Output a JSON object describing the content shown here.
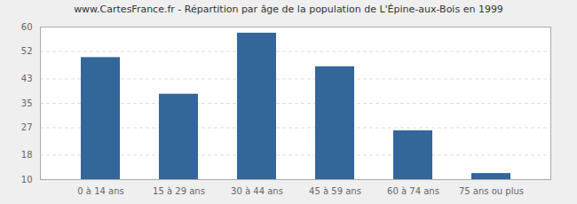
{
  "chart_data": {
    "type": "bar",
    "title": "www.CartesFrance.fr - Répartition par âge de la population de L'Épine-aux-Bois en 1999",
    "categories": [
      "0 à 14 ans",
      "15 à 29 ans",
      "30 à 44 ans",
      "45 à 59 ans",
      "60 à 74 ans",
      "75 ans ou plus"
    ],
    "values": [
      50,
      38,
      58,
      47,
      26,
      12
    ],
    "color": "#336699",
    "ylim": [
      10,
      60
    ],
    "yticks": [
      10,
      18,
      27,
      35,
      43,
      52,
      60
    ],
    "grid": true
  }
}
